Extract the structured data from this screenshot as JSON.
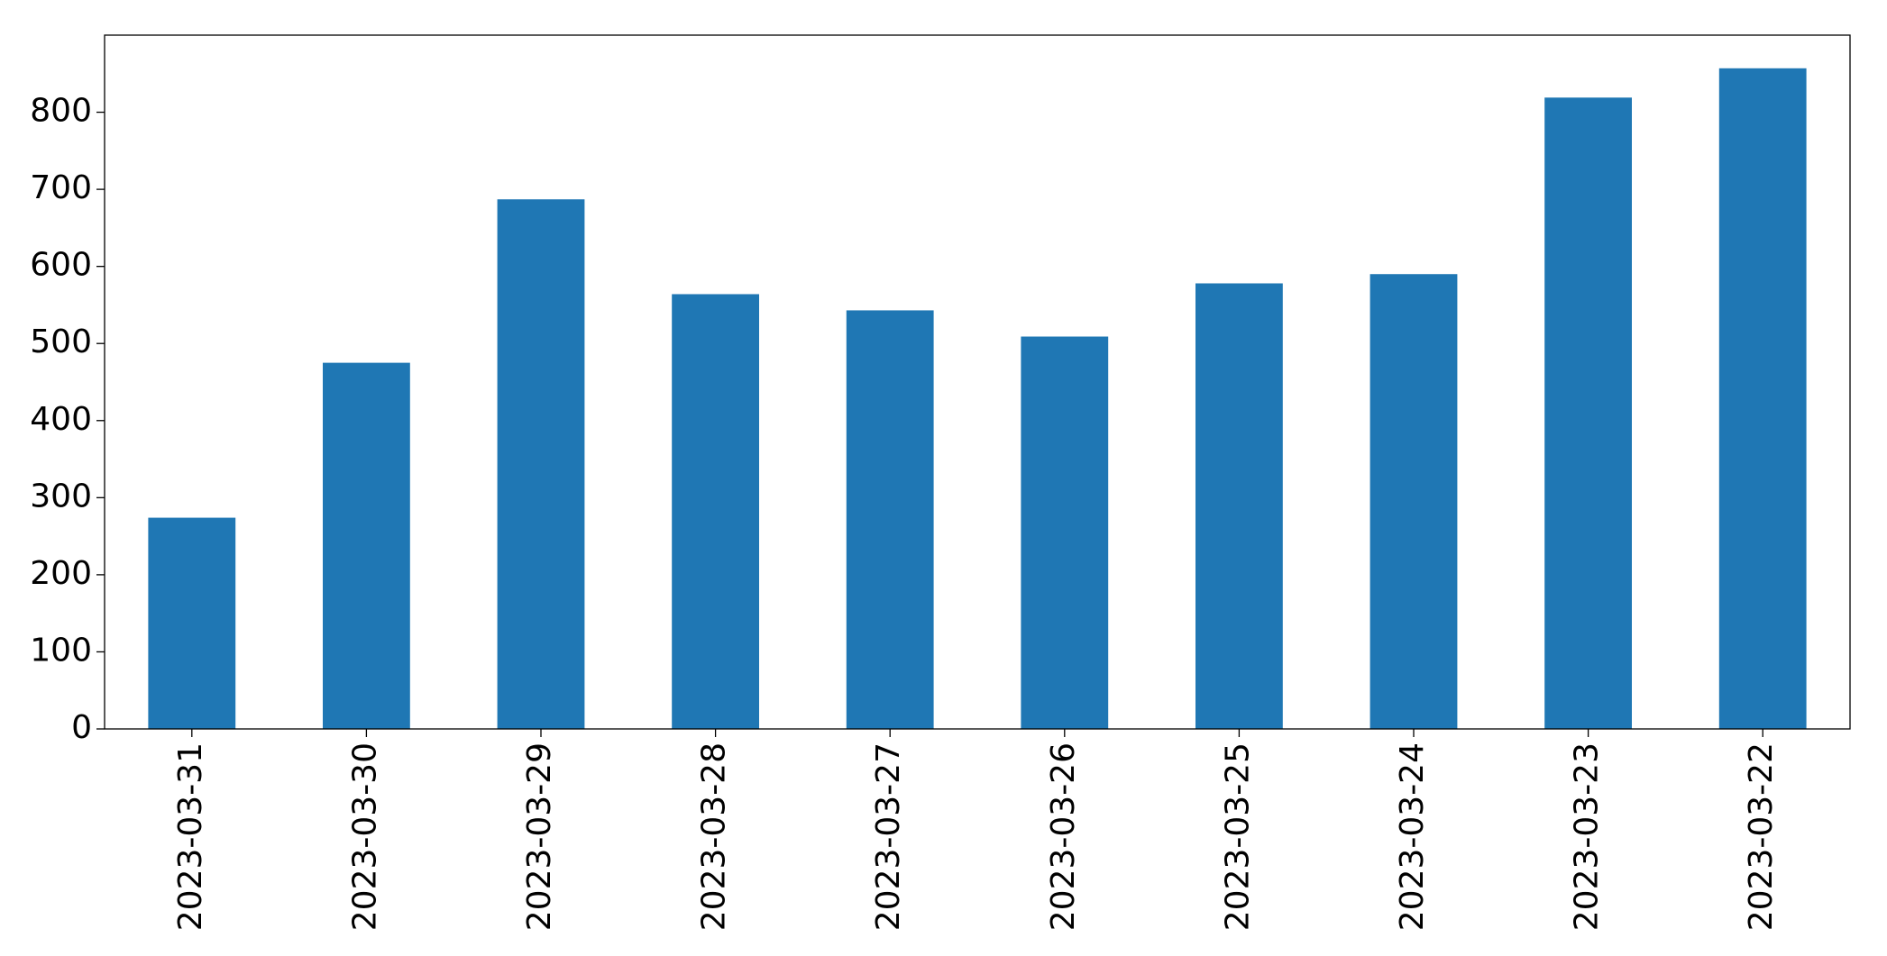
{
  "chart_data": {
    "type": "bar",
    "categories": [
      "2023-03-31",
      "2023-03-30",
      "2023-03-29",
      "2023-03-28",
      "2023-03-27",
      "2023-03-26",
      "2023-03-25",
      "2023-03-24",
      "2023-03-23",
      "2023-03-22"
    ],
    "values": [
      274,
      475,
      687,
      564,
      543,
      509,
      578,
      590,
      819,
      857
    ],
    "color": "#1f77b4",
    "ylim": [
      0,
      900
    ],
    "yticks": [
      0,
      100,
      200,
      300,
      400,
      500,
      600,
      700,
      800
    ],
    "grid": false
  }
}
